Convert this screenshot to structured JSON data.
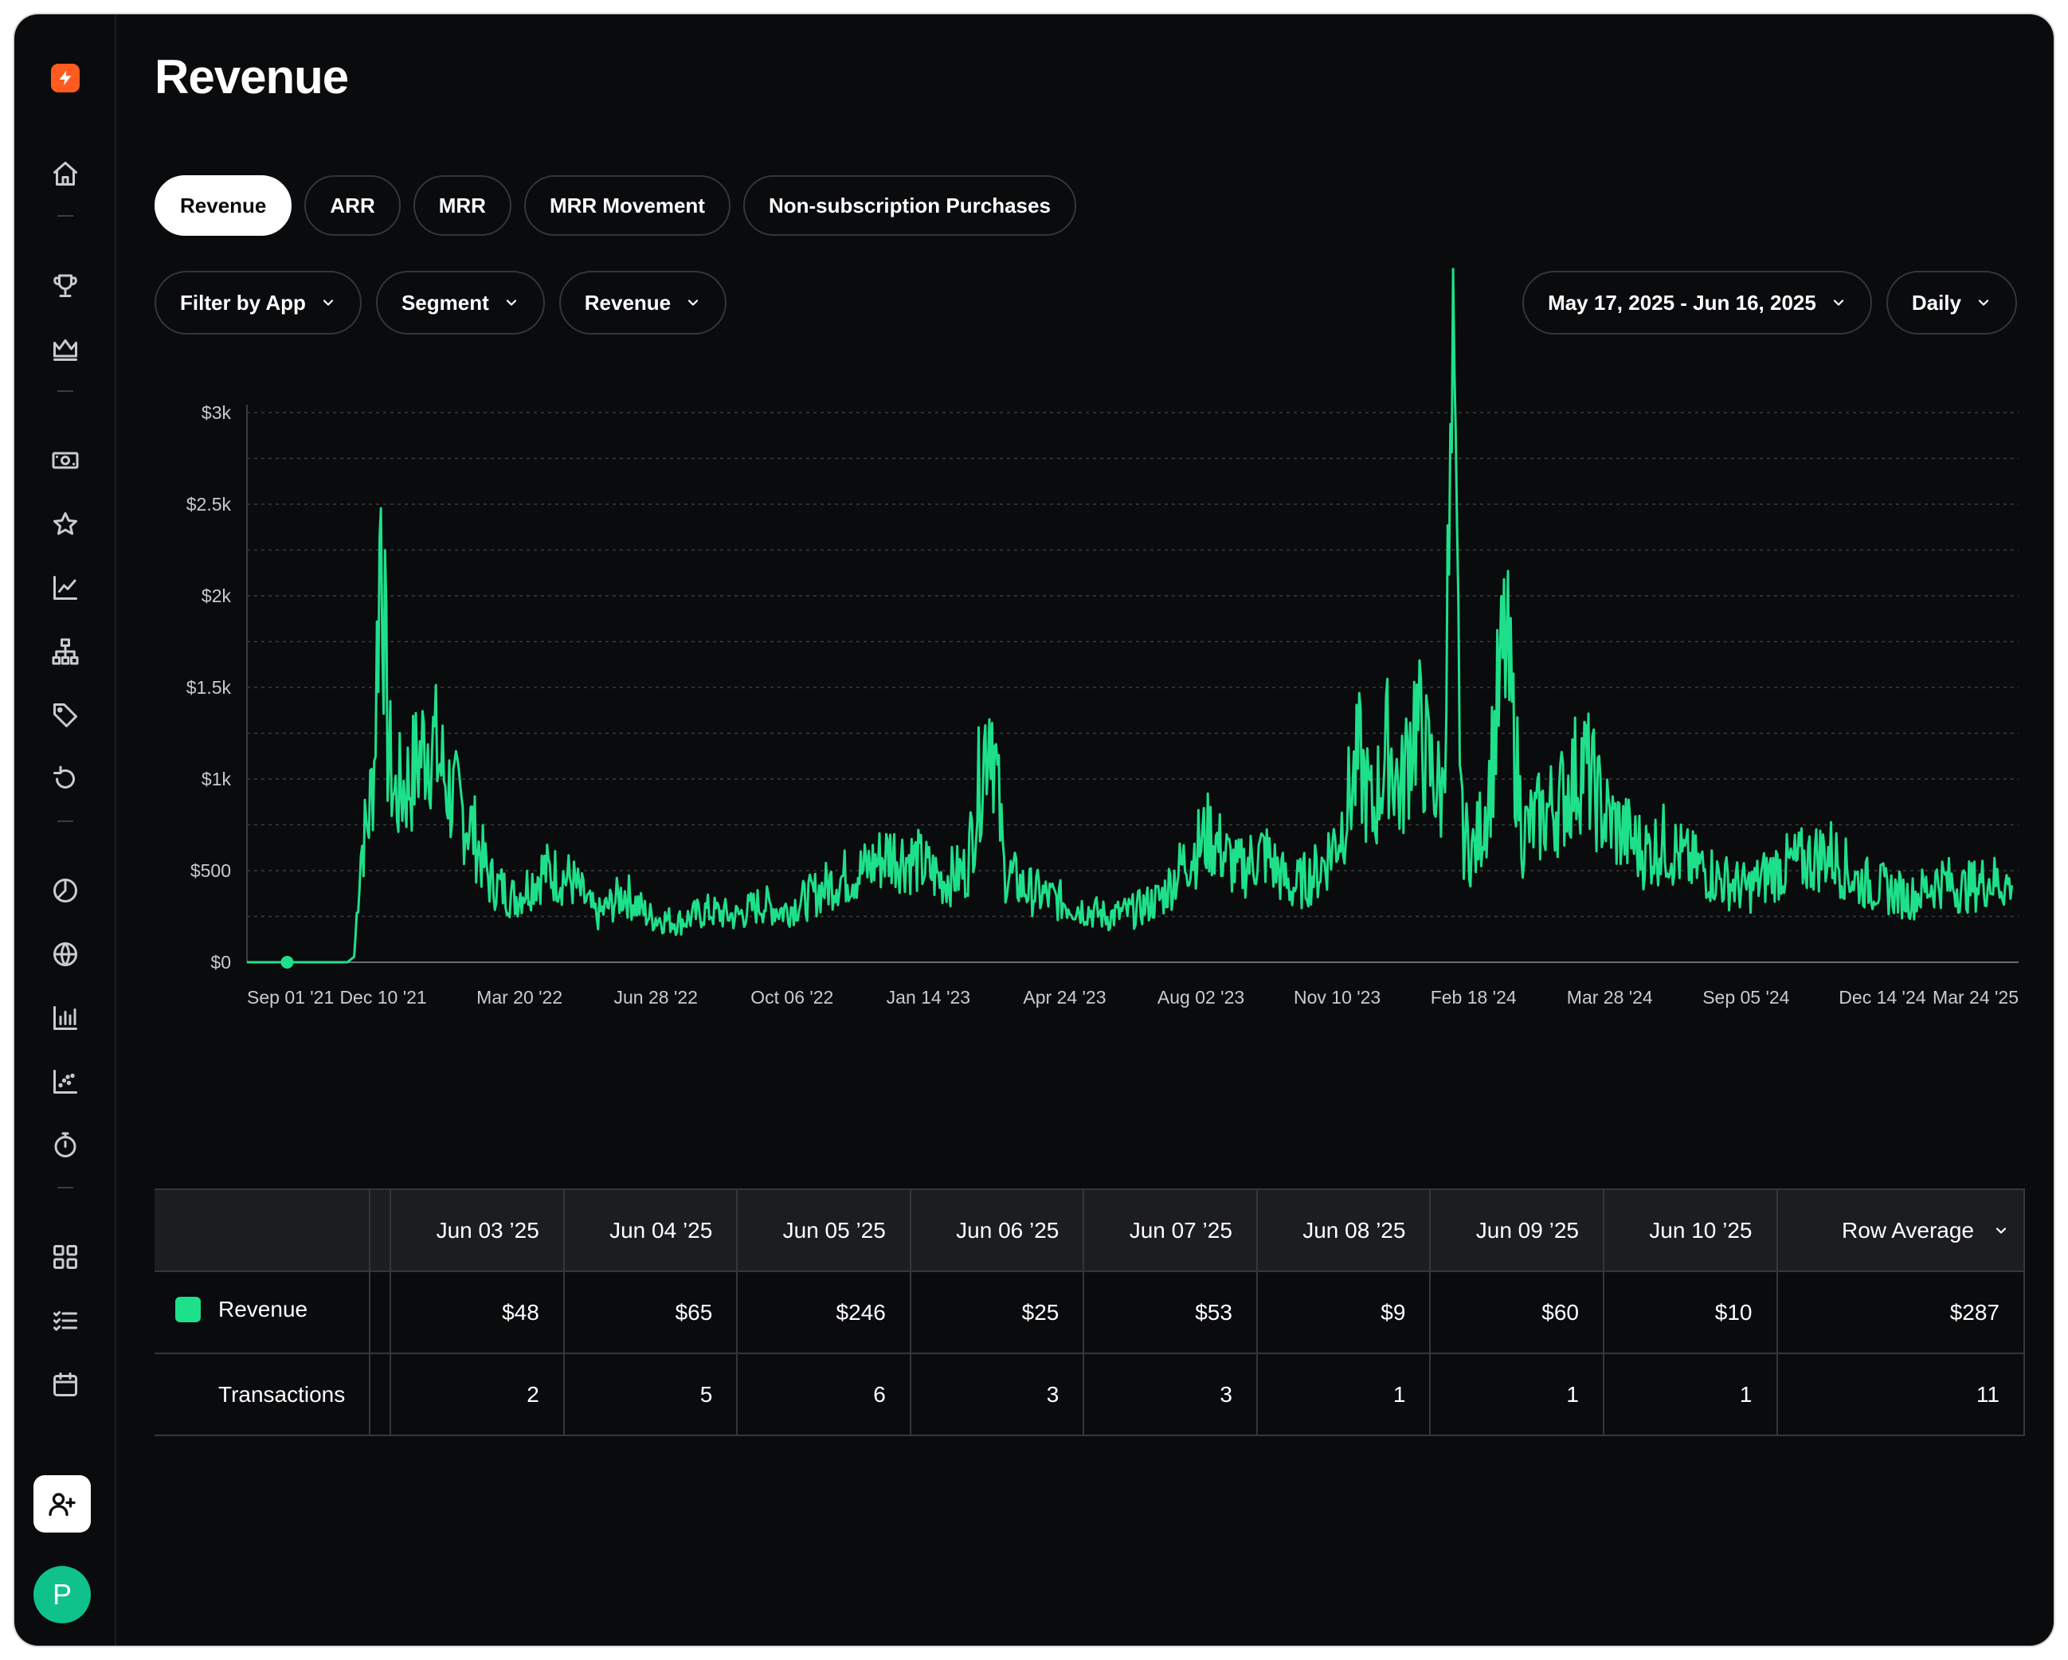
{
  "page": {
    "title": "Revenue"
  },
  "tabs": [
    {
      "label": "Revenue",
      "active": true
    },
    {
      "label": "ARR",
      "active": false
    },
    {
      "label": "MRR",
      "active": false
    },
    {
      "label": "MRR Movement",
      "active": false
    },
    {
      "label": "Non-subscription Purchases",
      "active": false
    }
  ],
  "filters": {
    "app": "Filter by App",
    "segment": "Segment",
    "metric": "Revenue",
    "date_range": "May 17, 2025 - Jun 16, 2025",
    "resolution": "Daily"
  },
  "sidebar": {
    "icons": [
      "home-icon",
      "trophy-icon",
      "crown-icon",
      "money-icon",
      "star-icon",
      "chart-line-icon",
      "hierarchy-icon",
      "tag-icon",
      "refresh-icon",
      "pie-chart-icon",
      "globe-icon",
      "bar-chart-icon",
      "scatter-icon",
      "stopwatch-icon",
      "grid-icon",
      "checklist-icon",
      "calendar-icon"
    ],
    "invite_icon": "user-plus-icon",
    "avatar_letter": "P",
    "accent": "#ff5a1f"
  },
  "chart_data": {
    "type": "line",
    "title": "",
    "xlabel": "",
    "ylabel": "",
    "ylim": [
      0,
      3000
    ],
    "y_ticks": [
      "$0",
      "$500",
      "$1k",
      "$1.5k",
      "$2k",
      "$2.5k",
      "$3k"
    ],
    "x_ticks": [
      "Sep 01 '21",
      "Dec 10 '21",
      "Mar 20 '22",
      "Jun 28 '22",
      "Oct 06 '22",
      "Jan 14 '23",
      "Apr 24 '23",
      "Aug 02 '23",
      "Nov 10 '23",
      "Feb 18 '24",
      "Mar 28 '24",
      "Sep 05 '24",
      "Dec 14 '24",
      "Mar 24 '25"
    ],
    "grid": true,
    "color": "#1fe08a",
    "series": [
      {
        "x": [
          "2021-09-01",
          "2021-10-01",
          "2021-11-15",
          "2021-11-20",
          "2021-11-25",
          "2021-12-01",
          "2021-12-05",
          "2021-12-10",
          "2021-12-15",
          "2021-12-20",
          "2022-01-01",
          "2022-01-15",
          "2022-02-01",
          "2022-02-15",
          "2022-03-01",
          "2022-03-20",
          "2022-04-10",
          "2022-05-01",
          "2022-05-20",
          "2022-06-10",
          "2022-06-28",
          "2022-07-20",
          "2022-08-10",
          "2022-09-01",
          "2022-09-20",
          "2022-10-06",
          "2022-10-25",
          "2022-11-15",
          "2022-12-05",
          "2022-12-25",
          "2023-01-14",
          "2023-02-01",
          "2023-02-20",
          "2023-03-10",
          "2023-03-20",
          "2023-04-05",
          "2023-04-24",
          "2023-05-15",
          "2023-06-05",
          "2023-06-25",
          "2023-07-15",
          "2023-08-02",
          "2023-08-20",
          "2023-09-10",
          "2023-09-30",
          "2023-10-20",
          "2023-11-10",
          "2023-11-25",
          "2023-12-10",
          "2023-12-20",
          "2024-01-01",
          "2024-01-10",
          "2024-01-20",
          "2024-02-01",
          "2024-02-10",
          "2024-02-18",
          "2024-02-25",
          "2024-03-05",
          "2024-03-15",
          "2024-03-28",
          "2024-04-10",
          "2024-04-25",
          "2024-05-10",
          "2024-05-25",
          "2024-06-10",
          "2024-06-25",
          "2024-07-10",
          "2024-07-25",
          "2024-08-10",
          "2024-08-25",
          "2024-09-05",
          "2024-09-25",
          "2024-10-15",
          "2024-11-05",
          "2024-11-25",
          "2024-12-14",
          "2025-01-05",
          "2025-01-25",
          "2025-02-15",
          "2025-03-05",
          "2025-03-24",
          "2025-04-10"
        ],
        "values": [
          0,
          0,
          0,
          30,
          600,
          800,
          1100,
          2500,
          1200,
          900,
          1000,
          1250,
          900,
          750,
          450,
          350,
          500,
          450,
          250,
          380,
          250,
          220,
          280,
          250,
          320,
          280,
          350,
          450,
          500,
          600,
          550,
          450,
          500,
          1400,
          500,
          400,
          350,
          300,
          250,
          280,
          350,
          550,
          700,
          500,
          600,
          400,
          500,
          700,
          1100,
          800,
          1200,
          900,
          1350,
          1050,
          900,
          2900,
          700,
          600,
          900,
          1750,
          700,
          800,
          900,
          1100,
          800,
          700,
          600,
          650,
          550,
          500,
          450,
          400,
          500,
          550,
          600,
          450,
          400,
          350,
          450,
          400,
          450,
          420
        ]
      }
    ]
  },
  "table": {
    "columns": [
      "Jun 03 ’25",
      "Jun 04 ’25",
      "Jun 05 ’25",
      "Jun 06 ’25",
      "Jun 07 ’25",
      "Jun 08 ’25",
      "Jun 09 ’25",
      "Jun 10 ’25",
      "Row Average"
    ],
    "rows": [
      {
        "label": "Revenue",
        "values": [
          "$48",
          "$65",
          "$246",
          "$25",
          "$53",
          "$9",
          "$60",
          "$10",
          "$287"
        ]
      },
      {
        "label": "Transactions",
        "values": [
          "2",
          "5",
          "6",
          "3",
          "3",
          "1",
          "1",
          "1",
          "11"
        ]
      }
    ]
  }
}
